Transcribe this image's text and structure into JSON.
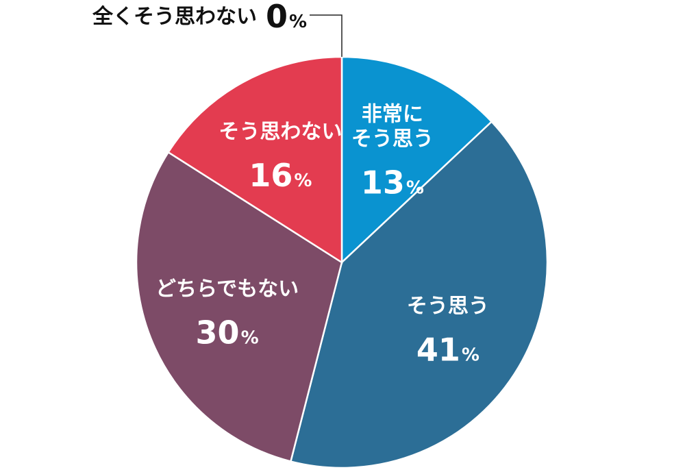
{
  "chart_data": {
    "type": "pie",
    "title": "",
    "start": "top",
    "direction": "clockwise",
    "unit": "%",
    "slices": [
      {
        "lines": [
          "非常に",
          "そう思う"
        ],
        "value": 13,
        "color": "#0a93d0",
        "label_pos": "inside"
      },
      {
        "lines": [
          "そう思う"
        ],
        "value": 41,
        "color": "#2c6e96",
        "label_pos": "inside"
      },
      {
        "lines": [
          "どちらでもない"
        ],
        "value": 30,
        "color": "#7d4b67",
        "label_pos": "inside"
      },
      {
        "lines": [
          "そう思わない"
        ],
        "value": 16,
        "color": "#e33c50",
        "label_pos": "inside"
      },
      {
        "lines": [
          "全くそう思わない"
        ],
        "value": 0,
        "color": "#222222",
        "label_pos": "outside-leader"
      }
    ],
    "legend": "none",
    "grid": false
  }
}
